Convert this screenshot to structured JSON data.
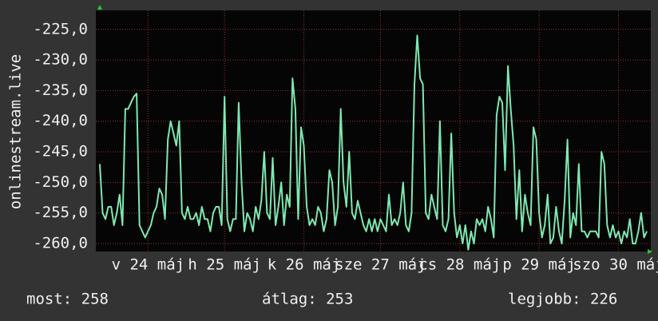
{
  "chart_data": {
    "type": "line",
    "y_label": "onlinestream.live",
    "x": [
      0,
      1,
      2,
      3,
      4,
      5,
      6,
      7,
      8,
      9,
      10,
      11,
      12,
      13,
      14,
      15,
      16,
      17,
      18,
      19,
      20,
      21,
      22,
      23,
      24,
      25,
      26,
      27,
      28,
      29,
      30,
      31,
      32,
      33,
      34,
      35,
      36,
      37,
      38,
      39,
      40,
      41,
      42,
      43,
      44,
      45,
      46,
      47,
      48,
      49,
      50,
      51,
      52,
      53,
      54,
      55,
      56,
      57,
      58,
      59,
      60,
      61,
      62,
      63,
      64,
      65,
      66,
      67,
      68,
      69,
      70,
      71,
      72,
      73,
      74,
      75,
      76,
      77,
      78,
      79,
      80,
      81,
      82,
      83,
      84,
      85,
      86,
      87,
      88,
      89,
      90,
      91,
      92,
      93,
      94,
      95,
      96,
      97,
      98,
      99,
      100,
      101,
      102,
      103,
      104,
      105,
      106,
      107,
      108,
      109,
      110,
      111,
      112,
      113,
      114,
      115,
      116,
      117,
      118,
      119,
      120,
      121,
      122,
      123,
      124,
      125,
      126,
      127,
      128,
      129,
      130,
      131,
      132,
      133,
      134,
      135,
      136,
      137,
      138,
      139,
      140,
      141,
      142,
      143,
      144,
      145,
      146,
      147,
      148,
      149,
      150,
      151,
      152,
      153,
      154,
      155,
      156,
      157,
      158,
      159,
      160,
      161,
      162,
      163,
      164,
      165,
      166,
      167,
      168,
      169,
      170,
      171,
      172,
      173,
      174,
      175,
      176,
      177,
      178,
      179,
      180,
      181,
      182,
      183,
      184,
      185,
      186,
      187,
      188,
      189,
      190,
      191,
      192,
      193
    ],
    "series": [
      {
        "color": "#7ee8b0",
        "values": [
          -247,
          -255,
          -256,
          -254,
          -254,
          -257,
          -255,
          -252,
          -257,
          -238,
          -238,
          -237,
          -236,
          -235.5,
          -257,
          -258,
          -259,
          -258,
          -257,
          -255,
          -254,
          -251,
          -252,
          -256,
          -243,
          -240,
          -242,
          -244,
          -240,
          -255,
          -256,
          -254,
          -256,
          -256,
          -255,
          -257,
          -254,
          -256,
          -256,
          -258,
          -255,
          -254,
          -254,
          -257,
          -236,
          -256,
          -258,
          -256,
          -256,
          -237,
          -250,
          -258,
          -255,
          -256,
          -258,
          -254,
          -256,
          -253,
          -245,
          -255,
          -256,
          -246,
          -257,
          -254,
          -250,
          -257,
          -252,
          -254,
          -233,
          -238,
          -256,
          -241,
          -244,
          -254,
          -257,
          -256,
          -257,
          -254,
          -255,
          -258,
          -256,
          -248,
          -250,
          -257,
          -254,
          -238,
          -250,
          -254,
          -245,
          -255,
          -256,
          -253,
          -255,
          -257,
          -258,
          -256,
          -258,
          -256,
          -258,
          -256,
          -257,
          -258,
          -252,
          -257,
          -256,
          -257,
          -255,
          -250,
          -257,
          -258,
          -255,
          -234,
          -226,
          -233,
          -234,
          -255,
          -256,
          -252,
          -254,
          -256,
          -240,
          -257,
          -258,
          -256,
          -242,
          -255,
          -259,
          -257,
          -260,
          -257,
          -261,
          -258,
          -260,
          -256,
          -257,
          -256,
          -258,
          -254,
          -256,
          -259,
          -239,
          -236,
          -237,
          -248,
          -231,
          -238,
          -244,
          -256,
          -248,
          -258,
          -252,
          -255,
          -257,
          -241,
          -243,
          -255,
          -259,
          -257,
          -252,
          -260,
          -259,
          -254,
          -258,
          -260,
          -253,
          -243,
          -259,
          -255,
          -257,
          -247,
          -258,
          -258,
          -259,
          -258,
          -258,
          -258,
          -259,
          -245,
          -247,
          -257,
          -259,
          -257,
          -259,
          -258,
          -260,
          -258,
          -259,
          -256,
          -260,
          -260,
          -258,
          -255,
          -259,
          -258
        ]
      }
    ],
    "xlim": [
      0,
      193
    ],
    "xticks": [
      {
        "value": 17,
        "label": "v 24 máj"
      },
      {
        "value": 44,
        "label": "h 25 máj"
      },
      {
        "value": 72,
        "label": "k 26 máj"
      },
      {
        "value": 99,
        "label": "sze 27 máj"
      },
      {
        "value": 127,
        "label": "cs 28 máj"
      },
      {
        "value": 155,
        "label": "p 29 máj"
      },
      {
        "value": 183,
        "label": "szo 30 máj"
      }
    ],
    "ylim": [
      -261.3,
      -221.9
    ],
    "yticks": [
      {
        "value": -225,
        "label": "-225,0"
      },
      {
        "value": -230,
        "label": "-230,0"
      },
      {
        "value": -235,
        "label": "-235,0"
      },
      {
        "value": -240,
        "label": "-240,0"
      },
      {
        "value": -245,
        "label": "-245,0"
      },
      {
        "value": -250,
        "label": "-250,0"
      },
      {
        "value": -255,
        "label": "-255,0"
      },
      {
        "value": -260,
        "label": "-260,0"
      }
    ],
    "grid": true,
    "footer": [
      "most: 258",
      "átlag: 253",
      "legjobb: 226"
    ]
  }
}
